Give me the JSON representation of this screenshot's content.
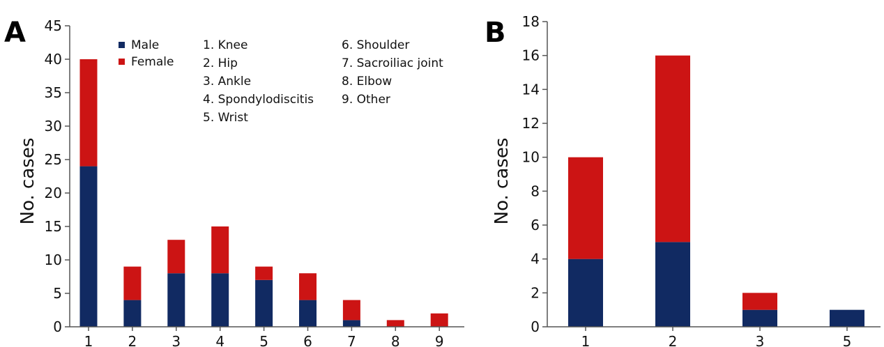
{
  "colors": {
    "male": "#112a62",
    "female": "#cc1414"
  },
  "chart_data": [
    {
      "type": "bar",
      "stacked": true,
      "panel_label": "A",
      "ylabel": "No. cases",
      "ylim": [
        0,
        45
      ],
      "yticks": [
        0,
        5,
        10,
        15,
        20,
        25,
        30,
        35,
        40,
        45
      ],
      "categories": [
        "1",
        "2",
        "3",
        "4",
        "5",
        "6",
        "7",
        "8",
        "9"
      ],
      "series": [
        {
          "name": "Male",
          "values": [
            24,
            4,
            8,
            8,
            7,
            4,
            1,
            0,
            0
          ]
        },
        {
          "name": "Female",
          "values": [
            16,
            5,
            5,
            7,
            2,
            4,
            3,
            1,
            2
          ]
        }
      ],
      "legend": [
        "Male",
        "Female"
      ],
      "category_key": [
        "1. Knee",
        "2. Hip",
        "3. Ankle",
        "4. Spondylodiscitis",
        "5. Wrist",
        "6. Shoulder",
        "7. Sacroiliac joint",
        "8. Elbow",
        "9. Other"
      ],
      "grid": false
    },
    {
      "type": "bar",
      "stacked": true,
      "panel_label": "B",
      "ylabel": "No. cases",
      "ylim": [
        0,
        18
      ],
      "yticks": [
        0,
        2,
        4,
        6,
        8,
        10,
        12,
        14,
        16,
        18
      ],
      "categories": [
        "1",
        "2",
        "3",
        "5"
      ],
      "series": [
        {
          "name": "Male",
          "values": [
            4,
            5,
            1,
            1
          ]
        },
        {
          "name": "Female",
          "values": [
            6,
            11,
            1,
            0
          ]
        }
      ],
      "grid": false
    }
  ]
}
